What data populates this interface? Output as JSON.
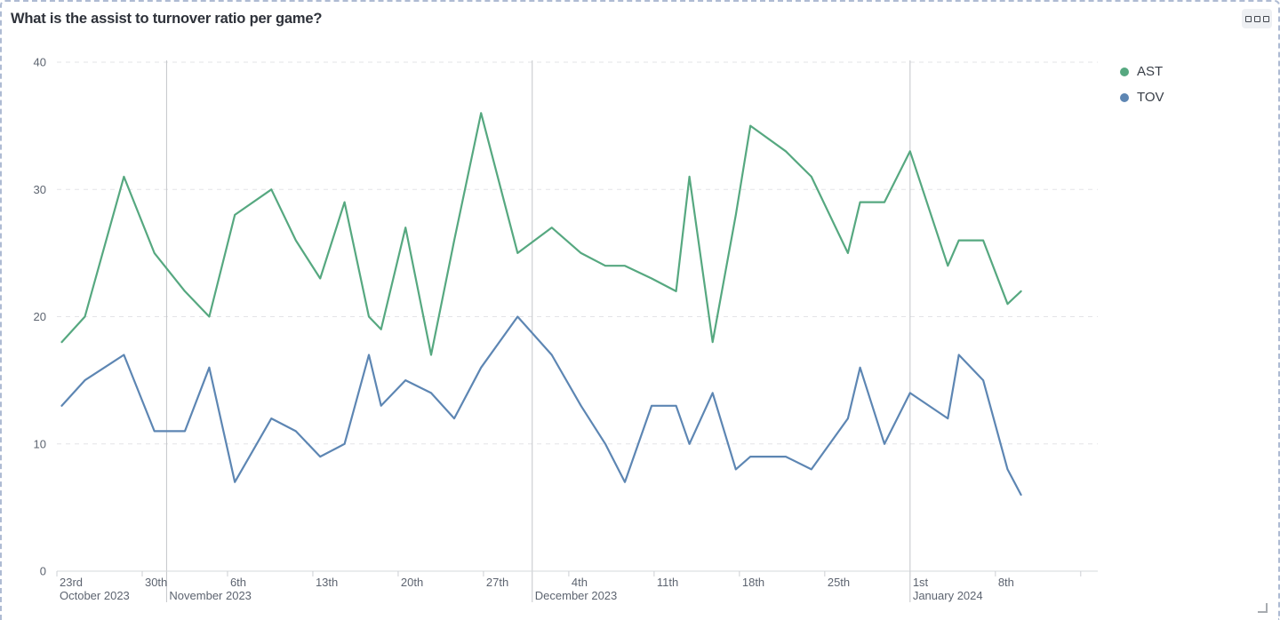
{
  "card": {
    "title": "What is the assist to turnover ratio per game?"
  },
  "legend": [
    {
      "name": "AST",
      "color": "#56a880"
    },
    {
      "name": "TOV",
      "color": "#5d86b3"
    }
  ],
  "chart_data": {
    "type": "line",
    "title": "What is the assist to turnover ratio per game?",
    "xlabel": "",
    "ylabel": "",
    "grid": true,
    "legend_position": "top-right",
    "x_axis": {
      "unit": "days since Oct 23 2023",
      "range": [
        0,
        85.4
      ],
      "ticks": [
        {
          "day": 0,
          "label": "23rd"
        },
        {
          "day": 7,
          "label": "30th"
        },
        {
          "day": 14,
          "label": "6th"
        },
        {
          "day": 21,
          "label": "13th"
        },
        {
          "day": 28,
          "label": "20th"
        },
        {
          "day": 35,
          "label": "27th"
        },
        {
          "day": 42,
          "label": "4th"
        },
        {
          "day": 49,
          "label": "11th"
        },
        {
          "day": 56,
          "label": "18th"
        },
        {
          "day": 63,
          "label": "25th"
        },
        {
          "day": 70,
          "label": "1st"
        },
        {
          "day": 77,
          "label": "8th"
        },
        {
          "day": 84,
          "label": ""
        }
      ],
      "months": [
        {
          "day": 0,
          "label": "October 2023",
          "separator": false
        },
        {
          "day": 9,
          "label": "November 2023",
          "separator": true
        },
        {
          "day": 39,
          "label": "December 2023",
          "separator": true
        },
        {
          "day": 70,
          "label": "January 2024",
          "separator": true
        }
      ]
    },
    "y_axis": {
      "range": [
        0,
        40
      ],
      "tick_labels": [
        0,
        10,
        20,
        30,
        40
      ],
      "gridlines": [
        10,
        20,
        30,
        40
      ]
    },
    "days": [
      0.4,
      2.3,
      5.5,
      8,
      10.5,
      12.5,
      14.6,
      17.6,
      19.6,
      21.6,
      23.6,
      25.6,
      26.6,
      28.6,
      30.7,
      32.6,
      34.8,
      37.8,
      40.6,
      43,
      45,
      46.6,
      48.8,
      50.8,
      51.9,
      53.8,
      55.7,
      56.9,
      59.8,
      61.9,
      64.9,
      65.9,
      67.9,
      70,
      73.1,
      74,
      76,
      78,
      79.1
    ],
    "series": [
      {
        "name": "AST",
        "color": "#56a880",
        "values": [
          18,
          20,
          31,
          25,
          22,
          20,
          28,
          30,
          26,
          23,
          29,
          20,
          19,
          27,
          17,
          26,
          36,
          25,
          27,
          25,
          24,
          24,
          23,
          22,
          31,
          18,
          28,
          35,
          33,
          31,
          25,
          29,
          29,
          33,
          24,
          26,
          26,
          21,
          22
        ]
      },
      {
        "name": "TOV",
        "color": "#5d86b3",
        "values": [
          13,
          15,
          17,
          11,
          11,
          16,
          7,
          12,
          11,
          9,
          10,
          17,
          13,
          15,
          14,
          12,
          16,
          20,
          17,
          13,
          10,
          7,
          13,
          13,
          10,
          14,
          8,
          9,
          9,
          8,
          12,
          16,
          10,
          14,
          12,
          17,
          15,
          8,
          6
        ]
      }
    ]
  }
}
